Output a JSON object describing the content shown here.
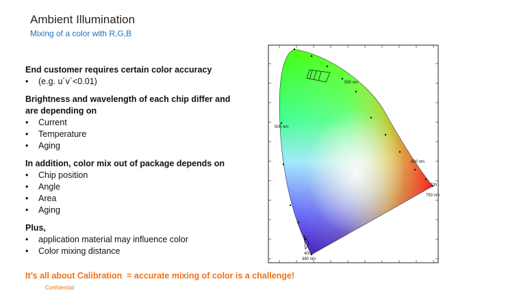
{
  "header": {
    "title": "Ambient Illumination",
    "subtitle": "Mixing of a color with R,G,B"
  },
  "sections": [
    {
      "heading": "End customer requires certain color accuracy",
      "bullets": [
        "(e.g. u´v´<0.01)"
      ]
    },
    {
      "heading": "Brightness and wavelength of each chip differ and are depending on",
      "bullets": [
        "Current",
        "Temperature",
        "Aging"
      ]
    },
    {
      "heading": "In addition, color mix out of package depends on",
      "bullets": [
        "Chip position",
        "Angle",
        "Area",
        "Aging"
      ]
    },
    {
      "heading": "Plus,",
      "bullets": [
        "application material may influence color",
        "Color mixing distance"
      ]
    }
  ],
  "conclusion": "It’s all about Calibration  = accurate mixing of color is a challenge!",
  "footer": "Confidential",
  "diagram": {
    "labels": [
      "550 nm",
      "500 nm",
      "600 nm",
      "700 -",
      "750 nm",
      "400",
      "380 nm"
    ]
  }
}
